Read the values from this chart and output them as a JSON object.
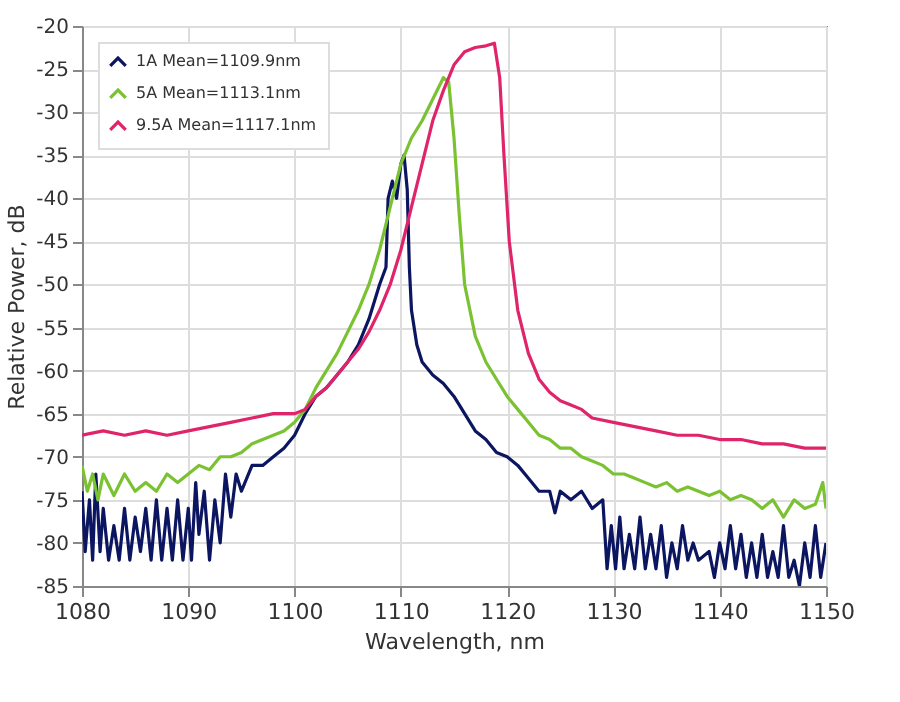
{
  "chart_data": {
    "type": "line",
    "xlabel": "Wavelength, nm",
    "ylabel": "Relative Power, dB",
    "xlim": [
      1080,
      1150
    ],
    "xticks": [
      1080,
      1090,
      1100,
      1110,
      1120,
      1130,
      1140,
      1150
    ],
    "ylim": [
      -85,
      -20
    ],
    "yticks": [
      -85,
      -80,
      -75,
      -70,
      -65,
      -60,
      -55,
      -50,
      -45,
      -40,
      -35,
      -30,
      -25,
      -20
    ],
    "grid": true,
    "legend": "top left",
    "marker": "none",
    "line_style": "solid",
    "series": [
      {
        "name": "1A Mean=1109.9nm",
        "color": "#0b1560",
        "x": [
          1080,
          1080.3,
          1080.7,
          1081,
          1081.3,
          1081.7,
          1082,
          1082.5,
          1083,
          1083.5,
          1084,
          1084.5,
          1085,
          1085.5,
          1086,
          1086.5,
          1087,
          1087.5,
          1088,
          1088.5,
          1089,
          1089.5,
          1090,
          1090.3,
          1090.7,
          1091,
          1091.5,
          1092,
          1092.5,
          1093,
          1093.5,
          1094,
          1094.5,
          1095,
          1096,
          1097,
          1098,
          1099,
          1100,
          1101,
          1102,
          1103,
          1104,
          1105,
          1106,
          1107,
          1108,
          1108.6,
          1108.8,
          1109.2,
          1109.6,
          1110,
          1110.3,
          1110.6,
          1110.8,
          1111,
          1111.5,
          1112,
          1113,
          1114,
          1115,
          1116,
          1117,
          1118,
          1119,
          1120,
          1121,
          1122,
          1123,
          1124,
          1124.5,
          1125,
          1126,
          1127,
          1128,
          1129,
          1129.4,
          1129.8,
          1130.2,
          1130.6,
          1131,
          1131.5,
          1132,
          1132.5,
          1133,
          1133.5,
          1134,
          1134.5,
          1135,
          1135.5,
          1136,
          1136.5,
          1137,
          1137.5,
          1138,
          1139,
          1139.5,
          1140,
          1140.5,
          1141,
          1141.5,
          1142,
          1142.5,
          1143,
          1143.5,
          1144,
          1144.5,
          1145,
          1145.5,
          1146,
          1146.5,
          1147,
          1147.5,
          1148,
          1148.5,
          1149,
          1149.5,
          1150
        ],
        "values": [
          -74,
          -81,
          -75,
          -82,
          -72,
          -81,
          -76,
          -82,
          -78,
          -82,
          -76,
          -82,
          -77,
          -81,
          -76,
          -82,
          -75,
          -82,
          -76,
          -82,
          -75,
          -82,
          -76,
          -82,
          -73,
          -79,
          -74,
          -82,
          -75,
          -80,
          -72,
          -77,
          -72,
          -74,
          -71,
          -71,
          -70,
          -69,
          -67.5,
          -65,
          -63,
          -62,
          -60.5,
          -59,
          -57,
          -54,
          -50,
          -48,
          -40,
          -38,
          -40,
          -36,
          -35,
          -39,
          -48,
          -53,
          -57,
          -59,
          -60.5,
          -61.5,
          -63,
          -65,
          -67,
          -68,
          -69.5,
          -70,
          -71,
          -72.5,
          -74,
          -74,
          -76.5,
          -74,
          -75,
          -74,
          -76,
          -75,
          -83,
          -78,
          -83,
          -77,
          -83,
          -79,
          -83,
          -77,
          -83,
          -79,
          -83,
          -78,
          -84,
          -80,
          -83,
          -78,
          -82,
          -80,
          -82,
          -81,
          -84,
          -80,
          -83,
          -78,
          -83,
          -79,
          -84,
          -80,
          -84,
          -79,
          -84,
          -81,
          -84,
          -78,
          -84,
          -82,
          -85,
          -80,
          -84,
          -78,
          -84,
          -80
        ]
      },
      {
        "name": "5A Mean=1113.1nm",
        "color": "#7ac231",
        "x": [
          1080,
          1080.5,
          1081,
          1081.5,
          1082,
          1083,
          1084,
          1085,
          1086,
          1087,
          1088,
          1089,
          1090,
          1091,
          1092,
          1093,
          1094,
          1095,
          1096,
          1097,
          1098,
          1099,
          1100,
          1101,
          1102,
          1103,
          1104,
          1105,
          1106,
          1107,
          1108,
          1109,
          1110,
          1111,
          1112,
          1113,
          1114,
          1114.5,
          1115,
          1115.5,
          1116,
          1117,
          1118,
          1119,
          1120,
          1121,
          1122,
          1123,
          1124,
          1125,
          1126,
          1127,
          1128,
          1129,
          1130,
          1131,
          1132,
          1133,
          1134,
          1135,
          1136,
          1137,
          1138,
          1139,
          1140,
          1141,
          1142,
          1143,
          1144,
          1145,
          1146,
          1147,
          1148,
          1149,
          1149.7,
          1150
        ],
        "values": [
          -71,
          -74,
          -72,
          -75,
          -72,
          -74.5,
          -72,
          -74,
          -73,
          -74,
          -72,
          -73,
          -72,
          -71,
          -71.5,
          -70,
          -70,
          -69.5,
          -68.5,
          -68,
          -67.5,
          -67,
          -66,
          -64.5,
          -62,
          -60,
          -58,
          -55.5,
          -53,
          -50,
          -46,
          -41,
          -36,
          -33,
          -31,
          -28.5,
          -26,
          -26.5,
          -33,
          -42,
          -50,
          -56,
          -59,
          -61,
          -63,
          -64.5,
          -66,
          -67.5,
          -68,
          -69,
          -69,
          -70,
          -70.5,
          -71,
          -72,
          -72,
          -72.5,
          -73,
          -73.5,
          -73,
          -74,
          -73.5,
          -74,
          -74.5,
          -74,
          -75,
          -74.5,
          -75,
          -76,
          -75,
          -77,
          -75,
          -76,
          -75.5,
          -73,
          -76
        ]
      },
      {
        "name": "9.5A Mean=1117.1nm",
        "color": "#e0246a",
        "x": [
          1080,
          1082,
          1084,
          1086,
          1088,
          1090,
          1092,
          1094,
          1096,
          1098,
          1100,
          1101,
          1102,
          1103,
          1104,
          1105,
          1106,
          1107,
          1108,
          1109,
          1110,
          1111,
          1112,
          1113,
          1114,
          1115,
          1116,
          1117,
          1118,
          1118.8,
          1119.3,
          1119.7,
          1120.2,
          1121,
          1122,
          1123,
          1124,
          1125,
          1126,
          1127,
          1128,
          1130,
          1132,
          1134,
          1136,
          1138,
          1140,
          1142,
          1144,
          1146,
          1148,
          1150
        ],
        "values": [
          -67.5,
          -67,
          -67.5,
          -67,
          -67.5,
          -67,
          -66.5,
          -66,
          -65.5,
          -65,
          -65,
          -64.5,
          -63,
          -62,
          -60.5,
          -59,
          -57.5,
          -55.5,
          -53,
          -50,
          -46,
          -41,
          -36,
          -31,
          -27.5,
          -24.5,
          -23,
          -22.5,
          -22.3,
          -22,
          -26,
          -35,
          -45,
          -53,
          -58,
          -61,
          -62.5,
          -63.5,
          -64,
          -64.5,
          -65.5,
          -66,
          -66.5,
          -67,
          -67.5,
          -67.5,
          -68,
          -68,
          -68.5,
          -68.5,
          -69,
          -69
        ]
      }
    ]
  }
}
